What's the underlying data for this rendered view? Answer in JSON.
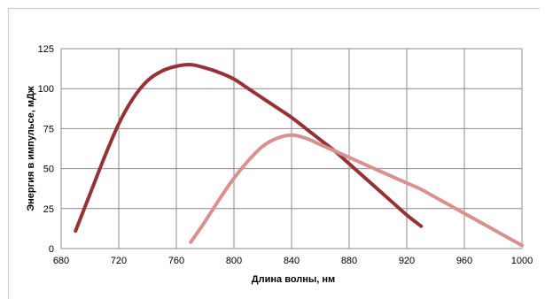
{
  "chart_data": {
    "type": "line",
    "title": "",
    "xlabel": "Длина волны, нм",
    "ylabel": "Энергия в импульсе, мДж",
    "xlim": [
      680,
      1000
    ],
    "ylim": [
      0,
      125
    ],
    "xticks": [
      680,
      720,
      760,
      800,
      840,
      880,
      920,
      960,
      1000
    ],
    "yticks": [
      0,
      25,
      50,
      75,
      100,
      125
    ],
    "xtick_labels": [
      "680",
      "720",
      "760",
      "800",
      "840",
      "880",
      "920",
      "960",
      "1000"
    ],
    "ytick_labels": [
      "0",
      "25",
      "50",
      "75",
      "100",
      "125"
    ],
    "grid": true,
    "legend": "none",
    "series": [
      {
        "color": "#963236",
        "points": [
          [
            690,
            11
          ],
          [
            700,
            34
          ],
          [
            710,
            57
          ],
          [
            720,
            78
          ],
          [
            730,
            94
          ],
          [
            740,
            105
          ],
          [
            750,
            111
          ],
          [
            760,
            114
          ],
          [
            770,
            115
          ],
          [
            780,
            113
          ],
          [
            790,
            110
          ],
          [
            800,
            106
          ],
          [
            810,
            100
          ],
          [
            820,
            94
          ],
          [
            830,
            88
          ],
          [
            840,
            82
          ],
          [
            850,
            75
          ],
          [
            860,
            68
          ],
          [
            870,
            61
          ],
          [
            880,
            53
          ],
          [
            890,
            45
          ],
          [
            900,
            37
          ],
          [
            910,
            29
          ],
          [
            920,
            21
          ],
          [
            930,
            14
          ]
        ]
      },
      {
        "color": "#d9918f",
        "points": [
          [
            770,
            4
          ],
          [
            780,
            17
          ],
          [
            790,
            31
          ],
          [
            800,
            44
          ],
          [
            810,
            55
          ],
          [
            820,
            64
          ],
          [
            830,
            69
          ],
          [
            840,
            71
          ],
          [
            850,
            69
          ],
          [
            860,
            65
          ],
          [
            870,
            61
          ],
          [
            880,
            57
          ],
          [
            890,
            53
          ],
          [
            900,
            49
          ],
          [
            910,
            45
          ],
          [
            920,
            41
          ],
          [
            930,
            37
          ],
          [
            940,
            32
          ],
          [
            950,
            27
          ],
          [
            960,
            22
          ],
          [
            970,
            17
          ],
          [
            980,
            12
          ],
          [
            990,
            7
          ],
          [
            1000,
            2
          ]
        ]
      }
    ]
  }
}
